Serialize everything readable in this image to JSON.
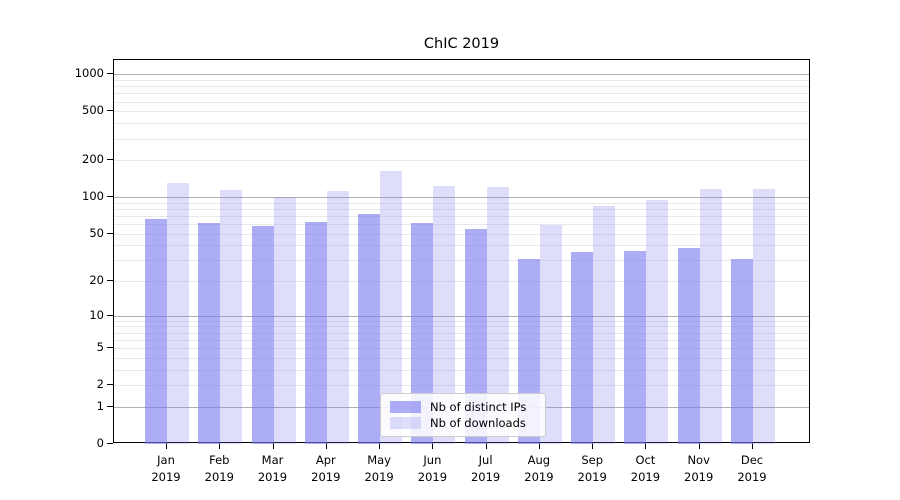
{
  "chart_data": {
    "type": "bar",
    "title": "ChIC 2019",
    "categories": [
      "Jan 2019",
      "Feb 2019",
      "Mar 2019",
      "Apr 2019",
      "May 2019",
      "Jun 2019",
      "Jul 2019",
      "Aug 2019",
      "Sep 2019",
      "Oct 2019",
      "Nov 2019",
      "Dec 2019"
    ],
    "x_tick_months": [
      "Jan",
      "Feb",
      "Mar",
      "Apr",
      "May",
      "Jun",
      "Jul",
      "Aug",
      "Sep",
      "Oct",
      "Nov",
      "Dec"
    ],
    "x_tick_year": "2019",
    "series": [
      {
        "name": "Nb of distinct IPs",
        "color": "rgba(123,123,240,0.62)",
        "values": [
          66,
          61,
          58,
          62,
          72,
          61,
          55,
          31,
          35,
          36,
          38,
          31
        ]
      },
      {
        "name": "Nb of downloads",
        "color": "rgba(123,123,240,0.25)",
        "values": [
          130,
          115,
          100,
          112,
          162,
          124,
          121,
          59,
          84,
          95,
          116,
          117
        ]
      }
    ],
    "y_axis": {
      "scale": "log10(1+value)",
      "tick_values": [
        0,
        1,
        2,
        5,
        10,
        20,
        50,
        100,
        200,
        500,
        1000
      ],
      "tick_labels": [
        "0",
        "1",
        "2",
        "5",
        "10",
        "20",
        "50",
        "100",
        "200",
        "500",
        "1000"
      ],
      "major_gridline_values": [
        1,
        10,
        100,
        1000
      ],
      "range": [
        0,
        1300
      ]
    },
    "grid": {
      "on": true,
      "major_color": "#b0b0b0",
      "minor_color": "#e9e9ec"
    },
    "legend": {
      "position": "lower center",
      "entries": [
        "Nb of distinct IPs",
        "Nb of downloads"
      ]
    },
    "colors": {
      "bar_dark": "rgba(123,123,240,0.62)",
      "bar_light": "rgba(123,123,240,0.25)",
      "spine": "#000000"
    }
  }
}
